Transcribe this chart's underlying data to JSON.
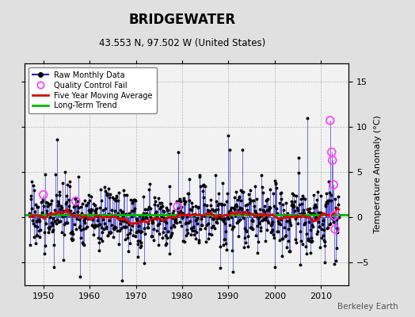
{
  "title": "BRIDGEWATER",
  "subtitle": "43.553 N, 97.502 W (United States)",
  "ylabel": "Temperature Anomaly (°C)",
  "watermark": "Berkeley Earth",
  "start_year": 1947,
  "end_year": 2013,
  "ylim": [
    -7.5,
    17
  ],
  "yticks": [
    -5,
    0,
    5,
    10,
    15
  ],
  "xlim": [
    1946,
    2016
  ],
  "xticks": [
    1950,
    1960,
    1970,
    1980,
    1990,
    2000,
    2010
  ],
  "bg_color": "#e0e0e0",
  "plot_bg_color": "#f2f2f2",
  "raw_line_color": "#2222cc",
  "raw_dot_color": "#000000",
  "ma_color": "#dd0000",
  "trend_color": "#00bb00",
  "trend_y": 0.25,
  "qc_color": "#ff44ff",
  "noise_std": 1.8,
  "seed": 17
}
